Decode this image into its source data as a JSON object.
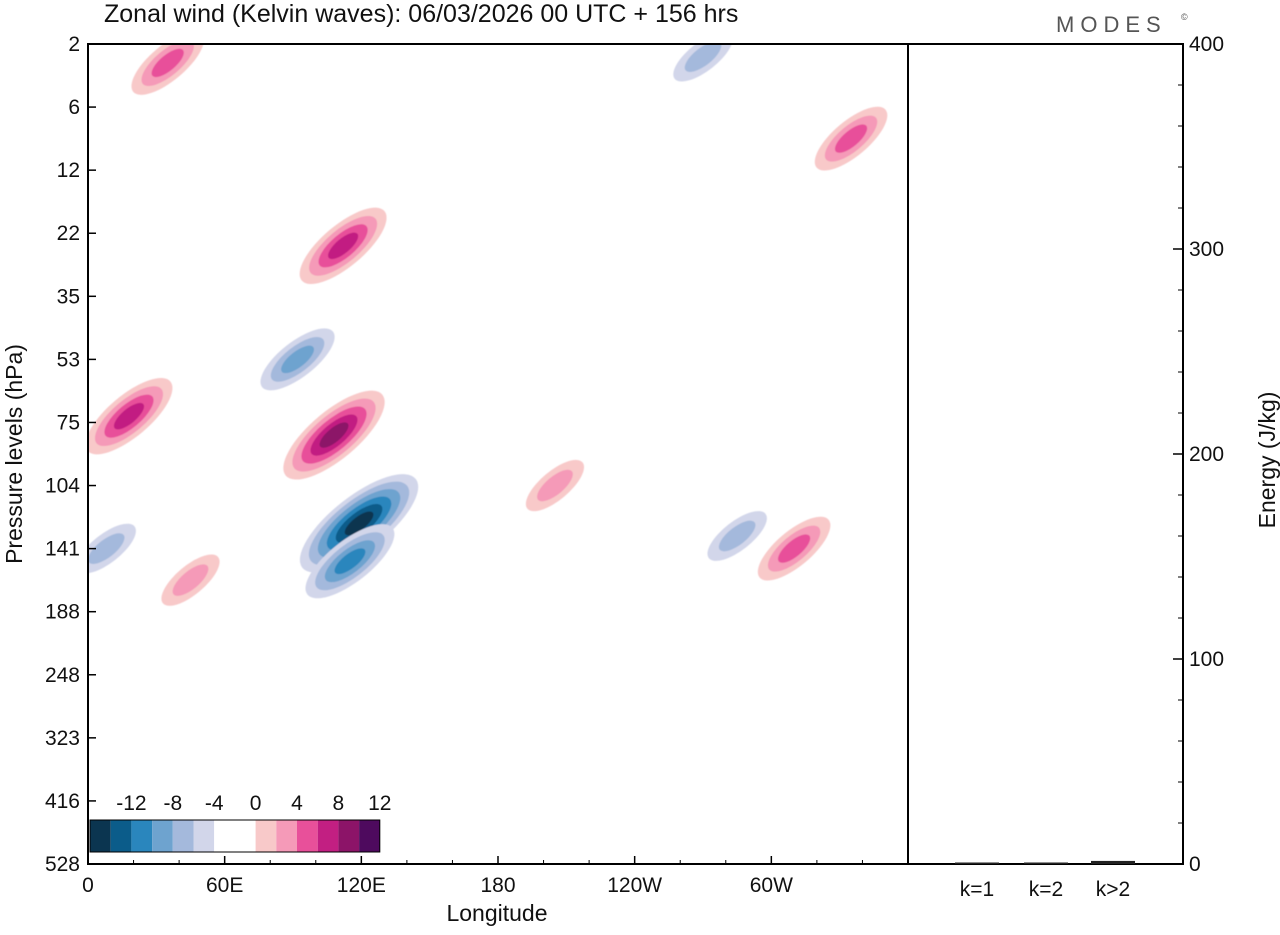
{
  "chart_data": [
    {
      "type": "heatmap",
      "title": "Zonal wind (Kelvin waves):  06/03/2026  00 UTC  + 156 hrs",
      "xlabel": "Longitude",
      "ylabel": "Pressure levels (hPa)",
      "x_ticks": [
        "0",
        "60E",
        "120E",
        "180",
        "120W",
        "60W"
      ],
      "y_ticks": [
        "2",
        "6",
        "12",
        "22",
        "35",
        "53",
        "75",
        "104",
        "141",
        "188",
        "248",
        "323",
        "416",
        "528"
      ],
      "colorbar": {
        "labels": [
          "-12",
          "-8",
          "-4",
          "0",
          "4",
          "8",
          "12"
        ],
        "colors": [
          "#0b3550",
          "#0b5c8a",
          "#2a86bd",
          "#6ea3cf",
          "#a4b9dc",
          "#d2d6ea",
          "#ffffff",
          "#ffffff",
          "#f8c9c9",
          "#f59ab8",
          "#e8509a",
          "#c21f82",
          "#8c1468",
          "#4e0a5e"
        ]
      },
      "regions": [
        {
          "name": "neg-core-120E-104hPa",
          "lon": 119,
          "level_index": 7.6,
          "value": -12
        },
        {
          "name": "neg-120E-141hPa",
          "lon": 115,
          "level_index": 8.2,
          "value": -8
        },
        {
          "name": "pos-core-110E-75hPa",
          "lon": 108,
          "level_index": 6.2,
          "value": 10
        },
        {
          "name": "pos-20E-75hPa",
          "lon": 18,
          "level_index": 5.9,
          "value": 8
        },
        {
          "name": "pos-115E-22hPa",
          "lon": 112,
          "level_index": 3.2,
          "value": 8
        },
        {
          "name": "neg-90E-53hPa",
          "lon": 92,
          "level_index": 5.0,
          "value": -6
        },
        {
          "name": "pos-60W-141hPa",
          "lon": 310,
          "level_index": 8.0,
          "value": 6
        },
        {
          "name": "pos-160W-104hPa",
          "lon": 205,
          "level_index": 7.0,
          "value": 4
        },
        {
          "name": "pos-45E-141hPa",
          "lon": 45,
          "level_index": 8.5,
          "value": 4
        },
        {
          "name": "neg-5E-141hPa",
          "lon": 8,
          "level_index": 8.0,
          "value": -4
        },
        {
          "name": "neg-60W-141hPa",
          "lon": 285,
          "level_index": 7.8,
          "value": -4
        },
        {
          "name": "neg-75W-2hPa",
          "lon": 270,
          "level_index": 0.2,
          "value": -4
        },
        {
          "name": "pos-30E-2hPa",
          "lon": 35,
          "level_index": 0.3,
          "value": 6
        },
        {
          "name": "pos-330E-6hPa",
          "lon": 335,
          "level_index": 1.5,
          "value": 6
        }
      ]
    },
    {
      "type": "bar",
      "ylabel": "Energy (J/kg)",
      "categories": [
        "k=1",
        "k=2",
        "k>2"
      ],
      "values": [
        0.5,
        0.5,
        1.5
      ],
      "ylim": [
        0,
        400
      ],
      "y_ticks": [
        "0",
        "100",
        "200",
        "300",
        "400"
      ]
    }
  ],
  "logo": "MODES",
  "logo_mark": "©"
}
